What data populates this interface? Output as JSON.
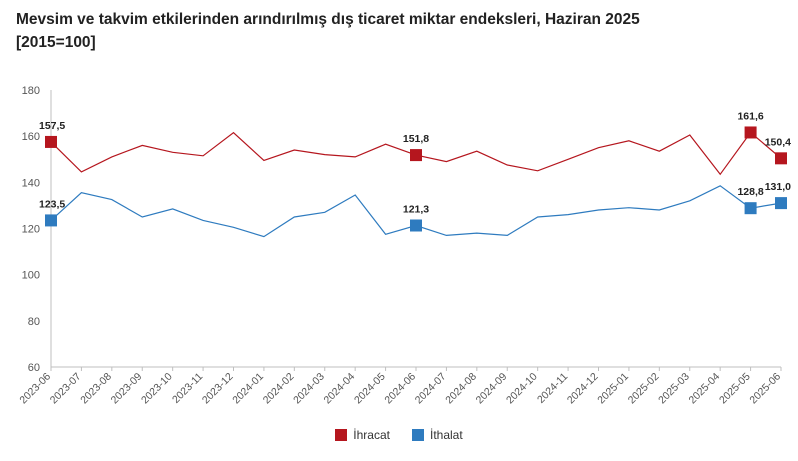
{
  "chart_data": {
    "type": "line",
    "title": "Mevsim ve takvim etkilerinden arındırılmış dış ticaret miktar endeksleri, Haziran 2025",
    "subtitle": "[2015=100]",
    "xlabel": "",
    "ylabel": "",
    "ylim": [
      60,
      180
    ],
    "yticks": [
      60,
      80,
      100,
      120,
      140,
      160,
      180
    ],
    "grid": false,
    "legend_position": "bottom",
    "categories": [
      "2023-06",
      "2023-07",
      "2023-08",
      "2023-09",
      "2023-10",
      "2023-11",
      "2023-12",
      "2024-01",
      "2024-02",
      "2024-03",
      "2024-04",
      "2024-05",
      "2024-06",
      "2024-07",
      "2024-08",
      "2024-09",
      "2024-10",
      "2024-11",
      "2024-12",
      "2025-01",
      "2025-02",
      "2025-03",
      "2025-04",
      "2025-05",
      "2025-06"
    ],
    "series": [
      {
        "name": "İhracat",
        "color": "#b5161e",
        "values": [
          157.5,
          144.5,
          151,
          156,
          153,
          151.5,
          161.5,
          149.5,
          154,
          152,
          151,
          156.5,
          151.8,
          149,
          153.5,
          147.5,
          145,
          150,
          155,
          158,
          153.5,
          160.5,
          143.5,
          161.6,
          150.4
        ],
        "labeled_points": [
          {
            "index": 0,
            "label": "157,5"
          },
          {
            "index": 12,
            "label": "151,8"
          },
          {
            "index": 23,
            "label": "161,6"
          },
          {
            "index": 24,
            "label": "150,4"
          }
        ]
      },
      {
        "name": "İthalat",
        "color": "#2e7bbf",
        "values": [
          123.5,
          135.5,
          132.5,
          125,
          128.5,
          123.5,
          120.5,
          116.5,
          125,
          127,
          134.5,
          117.5,
          121.3,
          117,
          118,
          117,
          125,
          126,
          128,
          129,
          128,
          132,
          138.5,
          128.8,
          131.0
        ],
        "labeled_points": [
          {
            "index": 0,
            "label": "123,5"
          },
          {
            "index": 12,
            "label": "121,3"
          },
          {
            "index": 23,
            "label": "128,8"
          },
          {
            "index": 24,
            "label": "131,0"
          }
        ]
      }
    ]
  }
}
